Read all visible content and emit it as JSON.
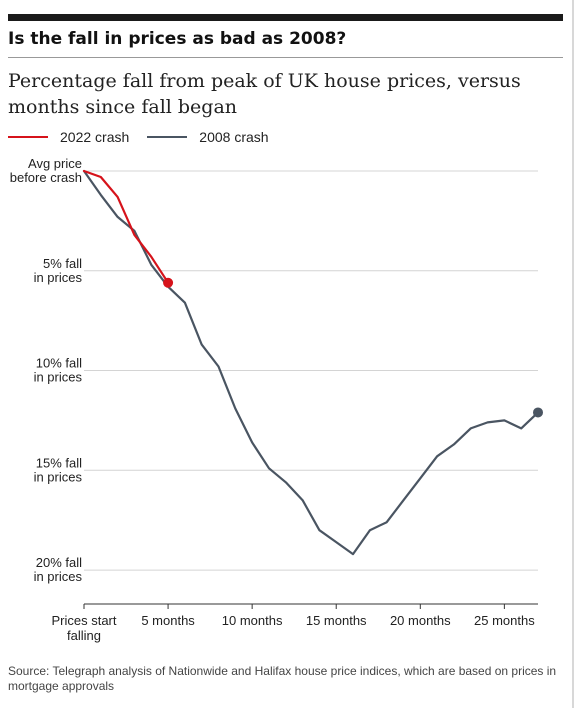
{
  "header": {
    "headline": "Is the fall in prices as bad as 2008?",
    "subtitle": "Percentage fall from peak of UK house prices, versus months since fall began"
  },
  "legend": [
    {
      "label": "2022 crash",
      "color": "#d6131b"
    },
    {
      "label": "2008 crash",
      "color": "#4a5562"
    }
  ],
  "chart_data": {
    "type": "line",
    "title": "Percentage fall from peak of UK house prices, versus months since fall began",
    "xlabel": "",
    "ylabel": "",
    "xlim": [
      0,
      27
    ],
    "ylim": [
      0,
      21.7
    ],
    "y_inverted": true,
    "grid": true,
    "legend_position": "top-left",
    "x_ticks": [
      {
        "value": 0,
        "label": [
          "Prices start",
          "falling"
        ]
      },
      {
        "value": 5,
        "label": [
          "5 months"
        ]
      },
      {
        "value": 10,
        "label": [
          "10 months"
        ]
      },
      {
        "value": 15,
        "label": [
          "15 months"
        ]
      },
      {
        "value": 20,
        "label": [
          "20 months"
        ]
      },
      {
        "value": 25,
        "label": [
          "25 months"
        ]
      }
    ],
    "y_ticks": [
      {
        "value": 0,
        "label": [
          "Avg price",
          "before crash"
        ]
      },
      {
        "value": 5,
        "label": [
          "5% fall",
          "in prices"
        ]
      },
      {
        "value": 10,
        "label": [
          "10% fall",
          "in prices"
        ]
      },
      {
        "value": 15,
        "label": [
          "15% fall",
          "in prices"
        ]
      },
      {
        "value": 20,
        "label": [
          "20% fall",
          "in prices"
        ]
      }
    ],
    "series": [
      {
        "name": "2008 crash",
        "color": "#4a5562",
        "x": [
          0,
          1,
          2,
          3,
          4,
          5,
          6,
          7,
          8,
          9,
          10,
          11,
          12,
          13,
          14,
          15,
          16,
          17,
          18,
          19,
          20,
          21,
          22,
          23,
          24,
          25,
          26,
          27
        ],
        "y": [
          0,
          1.2,
          2.3,
          3.0,
          4.7,
          5.8,
          6.6,
          8.7,
          9.8,
          11.9,
          13.6,
          14.9,
          15.6,
          16.5,
          18.0,
          18.6,
          19.2,
          18.0,
          17.6,
          16.5,
          15.4,
          14.3,
          13.7,
          12.9,
          12.6,
          12.5,
          12.9,
          12.1
        ],
        "end_marker": true
      },
      {
        "name": "2022 crash",
        "color": "#d6131b",
        "x": [
          0,
          1,
          2,
          3,
          4,
          5
        ],
        "y": [
          0,
          0.3,
          1.3,
          3.2,
          4.3,
          5.6
        ],
        "end_marker": true
      }
    ]
  },
  "source": "Source: Telegraph analysis of Nationwide and Halifax house price indices, which are based on prices in mortgage approvals"
}
